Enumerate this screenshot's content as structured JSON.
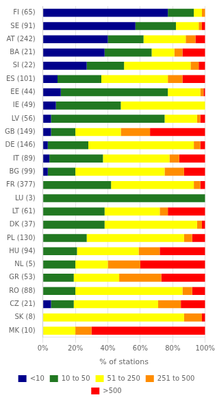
{
  "chart_data": {
    "type": "bar",
    "orientation": "horizontal",
    "stacked": true,
    "xlabel": "% of stations",
    "categories": [
      "FI (65)",
      "SE (91)",
      "AT (242)",
      "BA (21)",
      "SI (22)",
      "ES (101)",
      "EE (44)",
      "IE (49)",
      "LV (56)",
      "GB (149)",
      "DE (146)",
      "IT (89)",
      "BG (99)",
      "FR (377)",
      "LU (3)",
      "LT (61)",
      "DK (37)",
      "PL (130)",
      "HU (94)",
      "NL (5)",
      "GR (53)",
      "RO (88)",
      "CZ (21)",
      "SK (8)",
      "MK (10)"
    ],
    "series": [
      {
        "name": "<10",
        "color": "#00008B",
        "values": [
          77,
          57,
          40,
          38,
          27,
          9,
          11,
          8,
          5,
          5,
          3,
          4,
          3,
          0,
          0,
          0,
          0,
          0,
          0,
          0,
          0,
          0,
          5,
          0,
          0
        ]
      },
      {
        "name": "10 to 50",
        "color": "#217821",
        "values": [
          16,
          25,
          22,
          29,
          23,
          27,
          66,
          40,
          70,
          15,
          25,
          33,
          17,
          42,
          100,
          38,
          38,
          27,
          21,
          20,
          19,
          20,
          14,
          0,
          0
        ]
      },
      {
        "name": "51 to 250",
        "color": "#FFFF00",
        "values": [
          5,
          14,
          26,
          14,
          41,
          41,
          20,
          52,
          20,
          28,
          65,
          41,
          55,
          51,
          0,
          34,
          57,
          60,
          38,
          20,
          28,
          66,
          52,
          87,
          20
        ]
      },
      {
        "name": "251 to 500",
        "color": "#FF8C00",
        "values": [
          2,
          2,
          6,
          5,
          5,
          9,
          2,
          0,
          2,
          18,
          4,
          6,
          12,
          4,
          0,
          5,
          3,
          5,
          13,
          20,
          26,
          6,
          14,
          11,
          10
        ]
      },
      {
        "name": ">500",
        "color": "#FF0000",
        "values": [
          0,
          2,
          6,
          14,
          4,
          14,
          1,
          0,
          3,
          34,
          3,
          16,
          13,
          3,
          0,
          23,
          2,
          8,
          28,
          40,
          27,
          8,
          15,
          2,
          70
        ]
      }
    ],
    "xlim": [
      0,
      100
    ],
    "xticks": [
      {
        "value": 0,
        "label": "0%"
      },
      {
        "value": 20,
        "label": "20%"
      },
      {
        "value": 40,
        "label": "40%"
      },
      {
        "value": 60,
        "label": "60%"
      },
      {
        "value": 80,
        "label": "80%"
      },
      {
        "value": 100,
        "label": "100%"
      }
    ],
    "grid": true,
    "legend": "bottom"
  }
}
